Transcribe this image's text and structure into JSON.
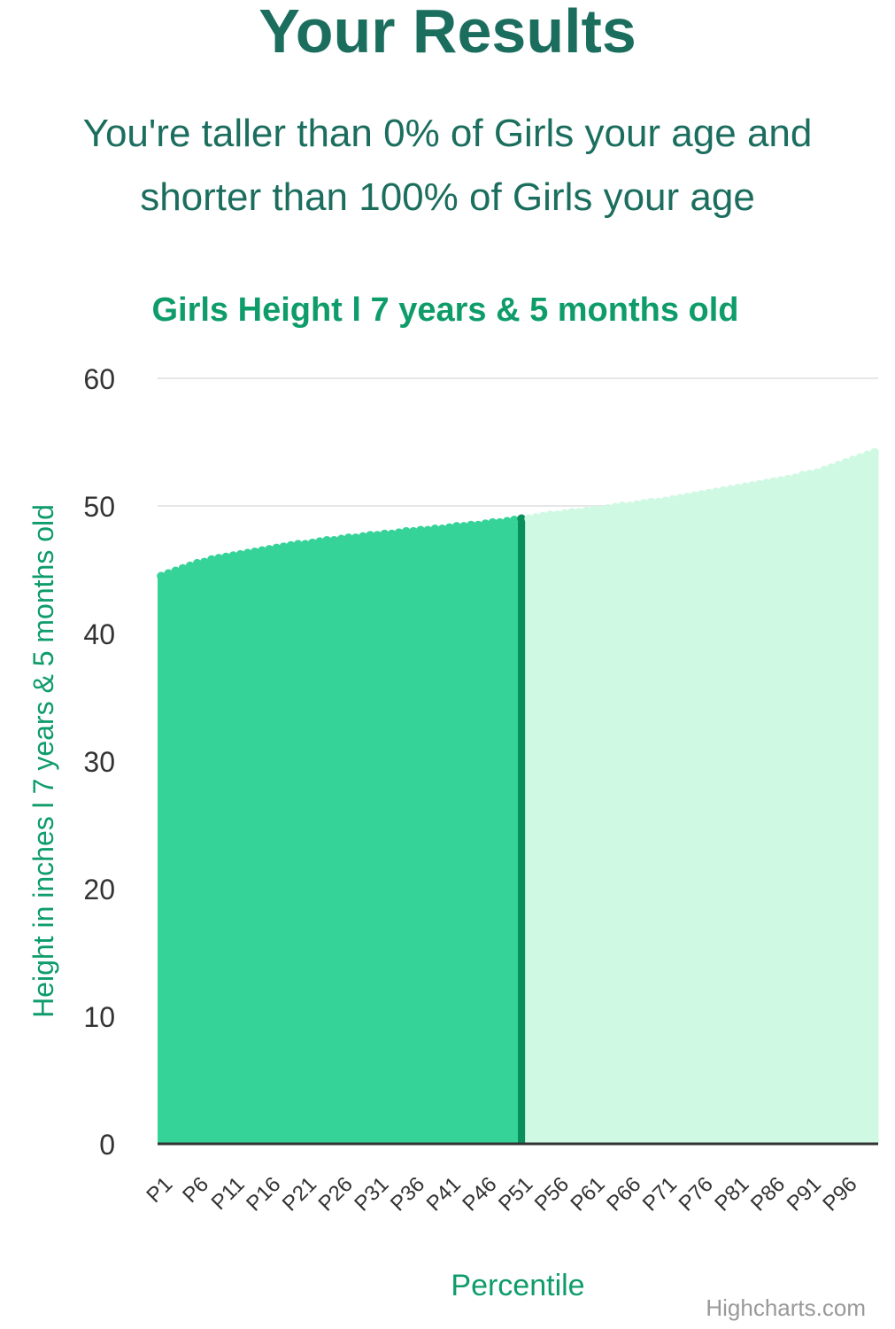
{
  "page": {
    "title": "Your Results",
    "summary_line1": "You're taller than 0% of Girls your age and",
    "summary_line2": "shorter than 100% of Girls your age",
    "credit": "Highcharts.com"
  },
  "colors": {
    "heading": "#1b6e5e",
    "accent": "#0e9c6a",
    "bar_filled": "#36d399",
    "bar_highlight": "#0a8f5c",
    "bar_remaining": "#cff9e3",
    "gridline": "#e6e6e6",
    "axis_line": "#333333",
    "tick_text": "#333333"
  },
  "chart_data": {
    "type": "bar",
    "title": "Girls Height l 7 years & 5 months old",
    "xlabel": "Percentile",
    "ylabel": "Height in inches l 7 years & 5 months old",
    "ylim": [
      0,
      60
    ],
    "yticks": [
      "0",
      "10",
      "20",
      "30",
      "40",
      "50",
      "60"
    ],
    "xticks": [
      "P1",
      "P6",
      "P11",
      "P16",
      "P21",
      "P26",
      "P31",
      "P36",
      "P41",
      "P46",
      "P51",
      "P56",
      "P61",
      "P66",
      "P71",
      "P76",
      "P81",
      "P86",
      "P91",
      "P96"
    ],
    "grid": true,
    "legend": "none",
    "highlight_category": 51,
    "percentiles": [
      1,
      2,
      3,
      4,
      5,
      6,
      7,
      8,
      9,
      10,
      11,
      12,
      13,
      14,
      15,
      16,
      17,
      18,
      19,
      20,
      21,
      22,
      23,
      24,
      25,
      26,
      27,
      28,
      29,
      30,
      31,
      32,
      33,
      34,
      35,
      36,
      37,
      38,
      39,
      40,
      41,
      42,
      43,
      44,
      45,
      46,
      47,
      48,
      49,
      50,
      51,
      52,
      53,
      54,
      55,
      56,
      57,
      58,
      59,
      60,
      61,
      62,
      63,
      64,
      65,
      66,
      67,
      68,
      69,
      70,
      71,
      72,
      73,
      74,
      75,
      76,
      77,
      78,
      79,
      80,
      81,
      82,
      83,
      84,
      85,
      86,
      87,
      88,
      89,
      90,
      91,
      92,
      93,
      94,
      95,
      96,
      97,
      98,
      99,
      100
    ],
    "values": [
      44.5,
      44.7,
      44.9,
      45.1,
      45.3,
      45.5,
      45.6,
      45.8,
      45.9,
      46.0,
      46.1,
      46.2,
      46.3,
      46.4,
      46.5,
      46.6,
      46.7,
      46.8,
      46.9,
      47.0,
      47.0,
      47.1,
      47.2,
      47.3,
      47.3,
      47.4,
      47.5,
      47.5,
      47.6,
      47.7,
      47.7,
      47.8,
      47.8,
      47.9,
      48.0,
      48.0,
      48.1,
      48.1,
      48.2,
      48.2,
      48.3,
      48.4,
      48.4,
      48.5,
      48.5,
      48.6,
      48.7,
      48.7,
      48.8,
      48.9,
      49.0,
      49.0,
      49.1,
      49.2,
      49.3,
      49.3,
      49.4,
      49.5,
      49.5,
      49.6,
      49.7,
      49.7,
      49.8,
      49.9,
      50.0,
      50.0,
      50.1,
      50.2,
      50.3,
      50.3,
      50.4,
      50.5,
      50.6,
      50.7,
      50.8,
      50.9,
      51.0,
      51.1,
      51.2,
      51.3,
      51.4,
      51.5,
      51.6,
      51.7,
      51.8,
      51.9,
      52.0,
      52.1,
      52.2,
      52.4,
      52.5,
      52.6,
      52.8,
      53.0,
      53.2,
      53.4,
      53.6,
      53.8,
      54.0,
      54.2
    ]
  }
}
